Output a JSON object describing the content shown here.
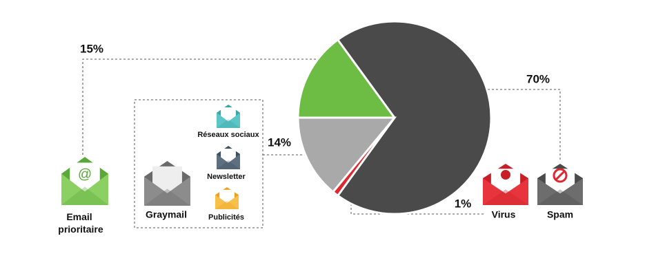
{
  "chart_data": {
    "type": "pie",
    "categories": [
      "Email prioritaire",
      "Spam",
      "Virus",
      "Graymail"
    ],
    "values": [
      15,
      70,
      1,
      14
    ],
    "value_labels": [
      "15%",
      "70%",
      "1%",
      "14%"
    ],
    "colors": [
      "#6dbd45",
      "#4b4a4a",
      "#e0262f",
      "#a9a9a9"
    ],
    "graymail_items": [
      "Réseaux sociaux",
      "Newsletter",
      "Publicités"
    ]
  }
}
